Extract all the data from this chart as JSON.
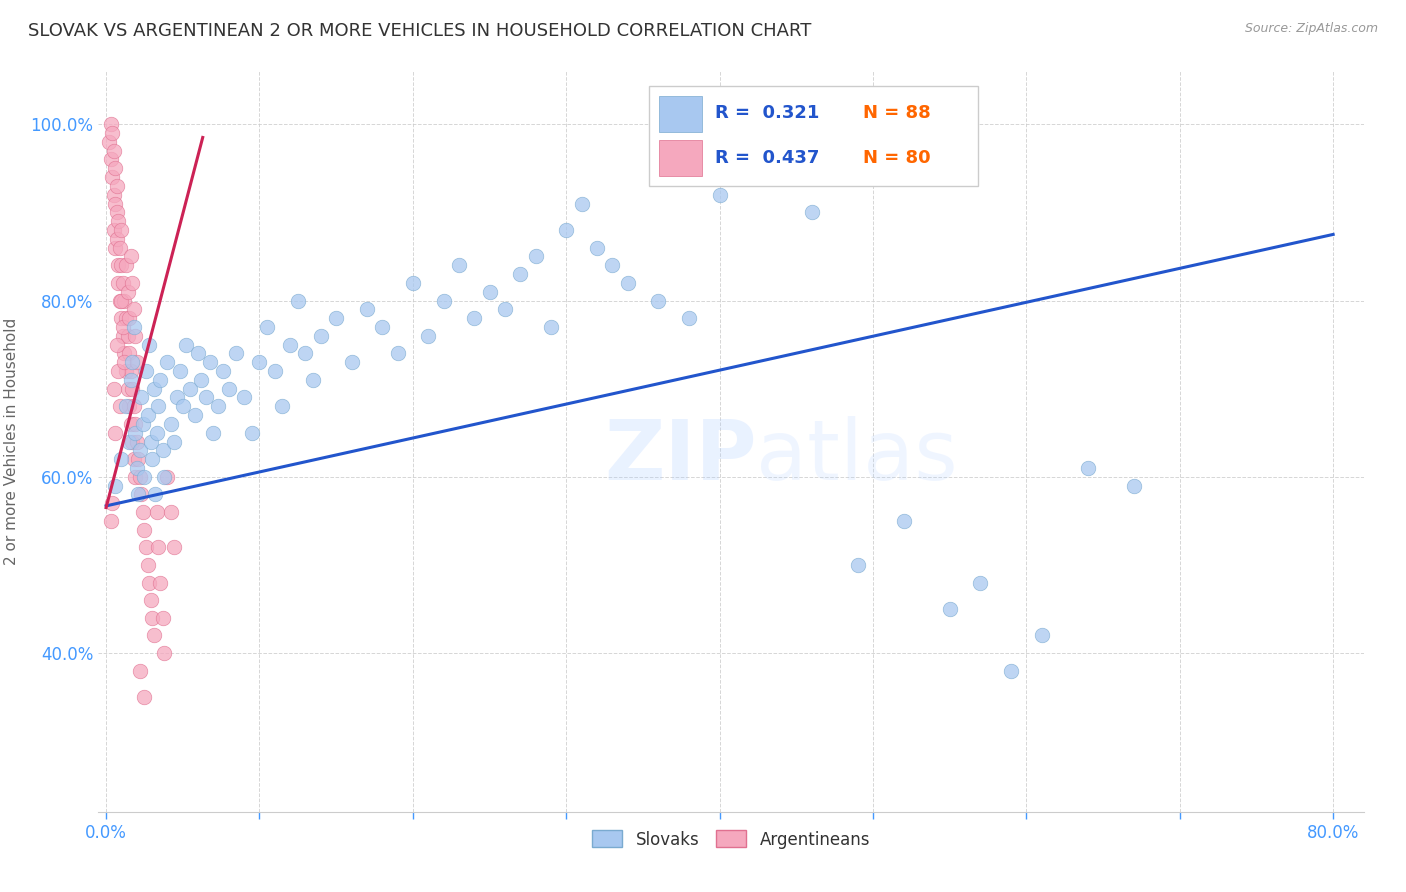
{
  "title": "SLOVAK VS ARGENTINEAN 2 OR MORE VEHICLES IN HOUSEHOLD CORRELATION CHART",
  "source": "Source: ZipAtlas.com",
  "ylabel": "2 or more Vehicles in Household",
  "xlim": [
    -0.005,
    0.82
  ],
  "ylim": [
    0.22,
    1.06
  ],
  "blue_color": "#a8c8f0",
  "blue_edge_color": "#7aaad0",
  "pink_color": "#f5a8be",
  "pink_edge_color": "#e07090",
  "blue_line_color": "#2255cc",
  "pink_line_color": "#cc2255",
  "watermark_color": "#aaccff",
  "background_color": "#ffffff",
  "grid_color": "#cccccc",
  "tick_color": "#4499ff",
  "title_color": "#333333",
  "ylabel_color": "#666666",
  "title_fontsize": 13,
  "label_fontsize": 11,
  "tick_fontsize": 12,
  "legend_r1": "R =  0.321",
  "legend_n1": "N = 88",
  "legend_r2": "R =  0.437",
  "legend_n2": "N = 80",
  "blue_trend_x0": 0.0,
  "blue_trend_x1": 0.8,
  "blue_trend_y0": 0.567,
  "blue_trend_y1": 0.875,
  "pink_trend_x0": 0.0,
  "pink_trend_x1": 0.063,
  "pink_trend_y0": 0.565,
  "pink_trend_y1": 0.985,
  "slovak_x": [
    0.006,
    0.01,
    0.013,
    0.015,
    0.016,
    0.017,
    0.018,
    0.019,
    0.02,
    0.021,
    0.022,
    0.023,
    0.024,
    0.025,
    0.026,
    0.027,
    0.028,
    0.029,
    0.03,
    0.031,
    0.032,
    0.033,
    0.034,
    0.035,
    0.037,
    0.038,
    0.04,
    0.042,
    0.044,
    0.046,
    0.048,
    0.05,
    0.052,
    0.055,
    0.058,
    0.06,
    0.062,
    0.065,
    0.068,
    0.07,
    0.073,
    0.076,
    0.08,
    0.085,
    0.09,
    0.095,
    0.1,
    0.105,
    0.11,
    0.115,
    0.12,
    0.125,
    0.13,
    0.135,
    0.14,
    0.15,
    0.16,
    0.17,
    0.18,
    0.19,
    0.2,
    0.21,
    0.22,
    0.23,
    0.24,
    0.25,
    0.26,
    0.27,
    0.28,
    0.29,
    0.3,
    0.31,
    0.32,
    0.33,
    0.34,
    0.36,
    0.38,
    0.4,
    0.43,
    0.46,
    0.49,
    0.52,
    0.55,
    0.57,
    0.59,
    0.61,
    0.64,
    0.67
  ],
  "slovak_y": [
    0.59,
    0.62,
    0.68,
    0.64,
    0.71,
    0.73,
    0.77,
    0.65,
    0.61,
    0.58,
    0.63,
    0.69,
    0.66,
    0.6,
    0.72,
    0.67,
    0.75,
    0.64,
    0.62,
    0.7,
    0.58,
    0.65,
    0.68,
    0.71,
    0.63,
    0.6,
    0.73,
    0.66,
    0.64,
    0.69,
    0.72,
    0.68,
    0.75,
    0.7,
    0.67,
    0.74,
    0.71,
    0.69,
    0.73,
    0.65,
    0.68,
    0.72,
    0.7,
    0.74,
    0.69,
    0.65,
    0.73,
    0.77,
    0.72,
    0.68,
    0.75,
    0.8,
    0.74,
    0.71,
    0.76,
    0.78,
    0.73,
    0.79,
    0.77,
    0.74,
    0.82,
    0.76,
    0.8,
    0.84,
    0.78,
    0.81,
    0.79,
    0.83,
    0.85,
    0.77,
    0.88,
    0.91,
    0.86,
    0.84,
    0.82,
    0.8,
    0.78,
    0.92,
    0.95,
    0.9,
    0.5,
    0.55,
    0.45,
    0.48,
    0.38,
    0.42,
    0.61,
    0.59
  ],
  "arg_x": [
    0.002,
    0.003,
    0.003,
    0.004,
    0.004,
    0.005,
    0.005,
    0.005,
    0.006,
    0.006,
    0.006,
    0.007,
    0.007,
    0.007,
    0.008,
    0.008,
    0.008,
    0.009,
    0.009,
    0.01,
    0.01,
    0.01,
    0.011,
    0.011,
    0.012,
    0.012,
    0.013,
    0.013,
    0.014,
    0.014,
    0.015,
    0.015,
    0.016,
    0.016,
    0.017,
    0.017,
    0.018,
    0.018,
    0.019,
    0.019,
    0.02,
    0.021,
    0.022,
    0.023,
    0.024,
    0.025,
    0.026,
    0.027,
    0.028,
    0.029,
    0.03,
    0.031,
    0.033,
    0.034,
    0.035,
    0.037,
    0.038,
    0.04,
    0.042,
    0.044,
    0.003,
    0.004,
    0.005,
    0.006,
    0.007,
    0.008,
    0.009,
    0.01,
    0.011,
    0.012,
    0.013,
    0.014,
    0.015,
    0.016,
    0.017,
    0.018,
    0.019,
    0.02,
    0.022,
    0.025
  ],
  "arg_y": [
    0.98,
    1.0,
    0.96,
    0.94,
    0.99,
    0.92,
    0.97,
    0.88,
    0.91,
    0.95,
    0.86,
    0.9,
    0.93,
    0.87,
    0.84,
    0.89,
    0.82,
    0.86,
    0.8,
    0.84,
    0.88,
    0.78,
    0.82,
    0.76,
    0.8,
    0.74,
    0.78,
    0.72,
    0.76,
    0.7,
    0.74,
    0.68,
    0.72,
    0.66,
    0.7,
    0.64,
    0.68,
    0.62,
    0.66,
    0.6,
    0.64,
    0.62,
    0.6,
    0.58,
    0.56,
    0.54,
    0.52,
    0.5,
    0.48,
    0.46,
    0.44,
    0.42,
    0.56,
    0.52,
    0.48,
    0.44,
    0.4,
    0.6,
    0.56,
    0.52,
    0.55,
    0.57,
    0.7,
    0.65,
    0.75,
    0.72,
    0.68,
    0.8,
    0.77,
    0.73,
    0.84,
    0.81,
    0.78,
    0.85,
    0.82,
    0.79,
    0.76,
    0.73,
    0.38,
    0.35
  ]
}
